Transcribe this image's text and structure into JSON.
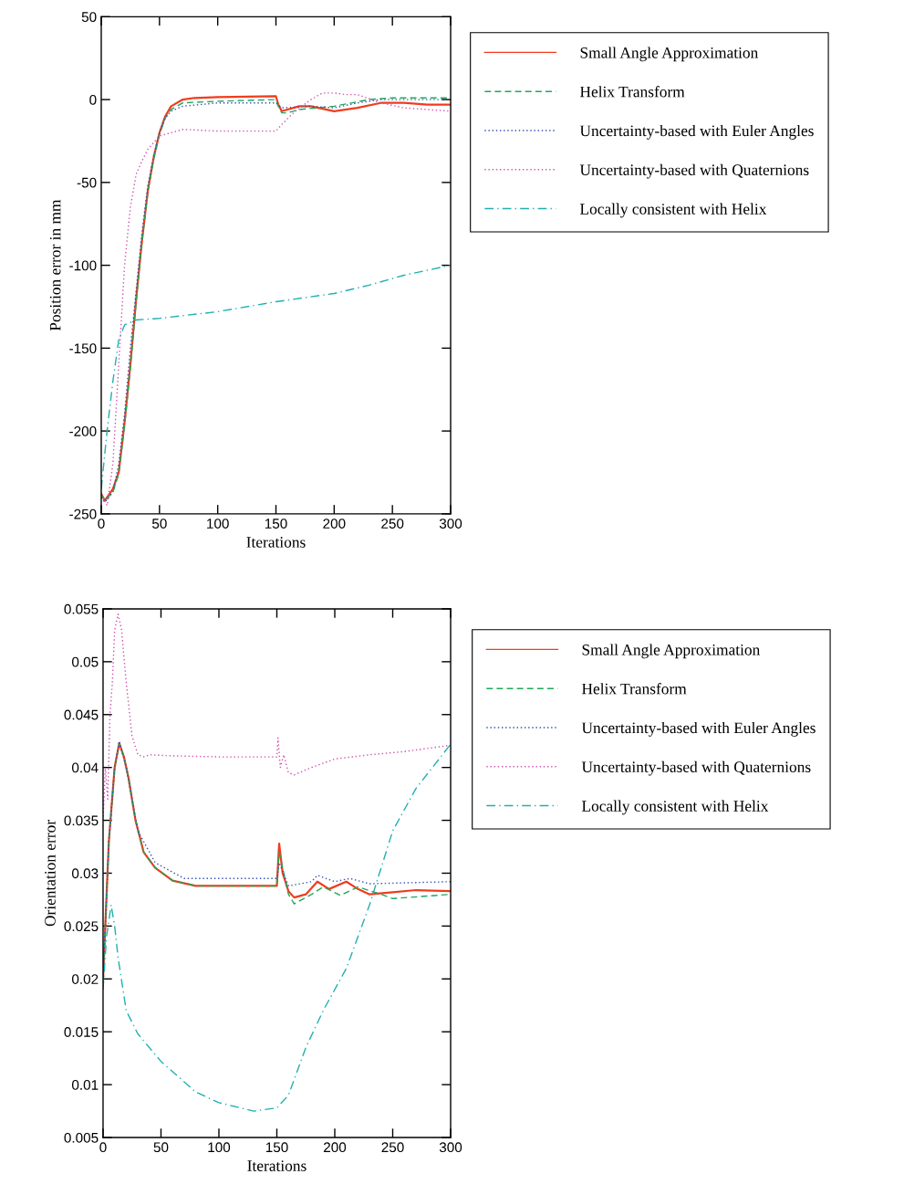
{
  "chart_data": [
    {
      "type": "line",
      "xlabel": "Iterations",
      "ylabel": "Position error in mm",
      "xlim": [
        0,
        300
      ],
      "ylim": [
        -250,
        50
      ],
      "xticks": [
        0,
        50,
        100,
        150,
        200,
        250,
        300
      ],
      "yticks": [
        -250,
        -200,
        -150,
        -100,
        -50,
        0,
        50
      ],
      "legend": "right",
      "grid": false,
      "marker": "none",
      "series": [
        {
          "name": "Small Angle Approximation",
          "color": "#f03c1e",
          "line_style": "solid",
          "x": [
            0,
            3,
            10,
            15,
            20,
            25,
            30,
            35,
            40,
            45,
            50,
            55,
            60,
            70,
            80,
            100,
            150,
            152,
            155,
            160,
            170,
            180,
            200,
            220,
            240,
            260,
            280,
            300
          ],
          "values": [
            -238,
            -242,
            -235,
            -225,
            -195,
            -160,
            -120,
            -85,
            -55,
            -35,
            -20,
            -10,
            -4,
            0,
            1,
            1.5,
            2,
            -3,
            -7,
            -6,
            -4,
            -4,
            -7,
            -5,
            -2,
            -2,
            -3,
            -3
          ]
        },
        {
          "name": "Helix Transform",
          "color": "#1fa85a",
          "line_style": "dashed",
          "x": [
            0,
            3,
            10,
            15,
            20,
            25,
            30,
            35,
            40,
            45,
            50,
            55,
            60,
            70,
            100,
            150,
            152,
            155,
            160,
            170,
            200,
            230,
            250,
            300
          ],
          "values": [
            -238,
            -242,
            -237,
            -226,
            -197,
            -162,
            -122,
            -86,
            -56,
            -36,
            -21,
            -11,
            -6,
            -2,
            -1,
            0,
            -4,
            -8,
            -8,
            -6,
            -4,
            0,
            1,
            1
          ]
        },
        {
          "name": "Uncertainty-based with Euler Angles",
          "color": "#2f4fb0",
          "line_style": "dotted",
          "x": [
            0,
            3,
            10,
            15,
            20,
            25,
            30,
            35,
            40,
            45,
            50,
            55,
            60,
            70,
            100,
            150,
            155,
            180,
            200,
            220,
            240,
            300
          ],
          "values": [
            -240,
            -243,
            -237,
            -220,
            -190,
            -150,
            -115,
            -80,
            -52,
            -34,
            -20,
            -11,
            -7,
            -4,
            -2,
            -2,
            -5,
            -4,
            -5,
            -2,
            0,
            0
          ]
        },
        {
          "name": "Uncertainty-based with Quaternions",
          "color": "#d050b0",
          "line_style": "dotted",
          "x": [
            0,
            5,
            10,
            15,
            20,
            25,
            30,
            35,
            40,
            50,
            60,
            70,
            100,
            150,
            155,
            165,
            180,
            190,
            200,
            210,
            220,
            240,
            260,
            300
          ],
          "values": [
            -238,
            -245,
            -220,
            -160,
            -100,
            -65,
            -45,
            -37,
            -30,
            -22,
            -20,
            -18,
            -19,
            -19,
            -15,
            -8,
            0,
            4,
            4,
            3,
            3,
            -2,
            -5,
            -7
          ]
        },
        {
          "name": "Locally consistent with Helix",
          "color": "#20b0b0",
          "line_style": "dashdot",
          "x": [
            0,
            5,
            10,
            15,
            20,
            30,
            50,
            100,
            150,
            200,
            230,
            260,
            300
          ],
          "values": [
            -235,
            -200,
            -170,
            -145,
            -136,
            -133,
            -132,
            -128,
            -122,
            -117,
            -112,
            -106,
            -100
          ]
        }
      ]
    },
    {
      "type": "line",
      "xlabel": "Iterations",
      "ylabel": "Orientation error",
      "xlim": [
        0,
        300
      ],
      "ylim": [
        0.005,
        0.055
      ],
      "xticks": [
        0,
        50,
        100,
        150,
        200,
        250,
        300
      ],
      "yticks": [
        0.005,
        0.01,
        0.015,
        0.02,
        0.025,
        0.03,
        0.035,
        0.04,
        0.045,
        0.05,
        0.055
      ],
      "legend": "right",
      "grid": false,
      "marker": "none",
      "series": [
        {
          "name": "Small Angle Approximation",
          "color": "#f03c1e",
          "line_style": "solid",
          "x": [
            0,
            5,
            10,
            14,
            18,
            22,
            28,
            35,
            45,
            60,
            80,
            100,
            150,
            152,
            155,
            160,
            165,
            175,
            185,
            195,
            210,
            220,
            230,
            250,
            270,
            300
          ],
          "values": [
            0.02,
            0.033,
            0.04,
            0.0423,
            0.041,
            0.039,
            0.035,
            0.032,
            0.0305,
            0.0293,
            0.0288,
            0.0288,
            0.0288,
            0.0328,
            0.03,
            0.0283,
            0.0277,
            0.028,
            0.0292,
            0.0285,
            0.0292,
            0.0285,
            0.028,
            0.0282,
            0.0284,
            0.0283
          ]
        },
        {
          "name": "Helix Transform",
          "color": "#1fa85a",
          "line_style": "dashed",
          "x": [
            0,
            5,
            10,
            14,
            18,
            22,
            28,
            35,
            45,
            60,
            80,
            100,
            150,
            152,
            160,
            165,
            180,
            190,
            205,
            220,
            240,
            250,
            300
          ],
          "values": [
            0.02,
            0.033,
            0.04,
            0.0423,
            0.041,
            0.039,
            0.035,
            0.032,
            0.0305,
            0.0293,
            0.0288,
            0.0288,
            0.0288,
            0.032,
            0.028,
            0.0271,
            0.028,
            0.0287,
            0.0279,
            0.0287,
            0.028,
            0.0276,
            0.028
          ]
        },
        {
          "name": "Uncertainty-based with Euler Angles",
          "color": "#2f4fb0",
          "line_style": "dotted",
          "x": [
            0,
            5,
            10,
            14,
            20,
            30,
            45,
            70,
            150,
            152,
            160,
            180,
            185,
            200,
            213,
            230,
            300
          ],
          "values": [
            0.02,
            0.033,
            0.04,
            0.0425,
            0.04,
            0.034,
            0.031,
            0.0295,
            0.0295,
            0.031,
            0.0288,
            0.0292,
            0.0298,
            0.0292,
            0.0295,
            0.029,
            0.0292
          ]
        },
        {
          "name": "Uncertainty-based with Quaternions",
          "color": "#d050b0",
          "line_style": "dotted",
          "x": [
            0,
            2,
            4,
            6,
            8,
            10,
            13,
            16,
            20,
            25,
            30,
            35,
            40,
            60,
            100,
            150,
            151,
            153,
            156,
            160,
            165,
            180,
            200,
            230,
            260,
            300
          ],
          "values": [
            0.035,
            0.04,
            0.037,
            0.045,
            0.048,
            0.053,
            0.0545,
            0.053,
            0.048,
            0.043,
            0.0412,
            0.041,
            0.0412,
            0.0411,
            0.041,
            0.041,
            0.0428,
            0.04,
            0.0412,
            0.0395,
            0.0393,
            0.04,
            0.0408,
            0.0412,
            0.0415,
            0.0421
          ]
        },
        {
          "name": "Locally consistent with Helix",
          "color": "#20b0b0",
          "line_style": "dashdot",
          "x": [
            0,
            3,
            7,
            10,
            13,
            20,
            30,
            50,
            80,
            100,
            130,
            150,
            160,
            175,
            190,
            210,
            230,
            250,
            270,
            300
          ],
          "values": [
            0.019,
            0.024,
            0.027,
            0.025,
            0.022,
            0.017,
            0.0148,
            0.0122,
            0.0093,
            0.0083,
            0.0075,
            0.0078,
            0.009,
            0.0135,
            0.017,
            0.021,
            0.027,
            0.034,
            0.038,
            0.0422
          ]
        }
      ]
    }
  ]
}
